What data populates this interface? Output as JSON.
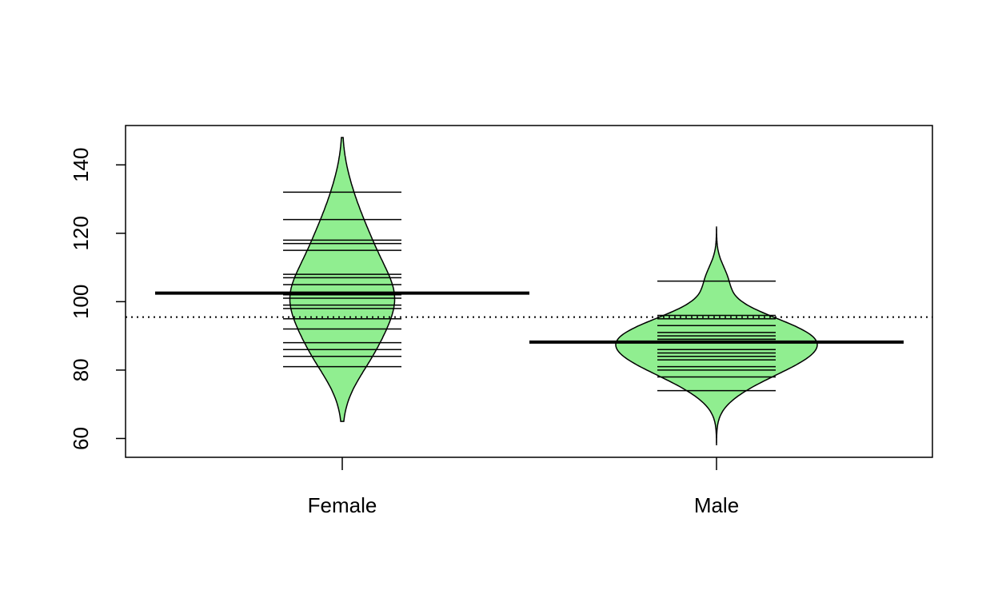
{
  "chart_data": {
    "type": "beanplot",
    "title": "",
    "xlabel": "",
    "ylabel": "",
    "ylim": [
      54.5,
      151.5
    ],
    "yticks": [
      60,
      80,
      100,
      120,
      140
    ],
    "categories": [
      "Female",
      "Male"
    ],
    "overall_mean": 95.5,
    "bean_fill": "#90ee90",
    "series": [
      {
        "category": "Female",
        "mean": 102.5,
        "range": [
          65,
          148
        ],
        "observations": [
          132,
          124,
          118,
          117,
          115,
          108,
          107,
          105,
          102,
          102,
          101,
          99,
          98,
          95,
          92,
          88,
          86,
          84,
          81
        ]
      },
      {
        "category": "Male",
        "mean": 88.2,
        "range": [
          58,
          122
        ],
        "observations": [
          106,
          96,
          95,
          93,
          91,
          90,
          89,
          89,
          88,
          86,
          85,
          84,
          83,
          81,
          80,
          78,
          74
        ]
      }
    ]
  }
}
